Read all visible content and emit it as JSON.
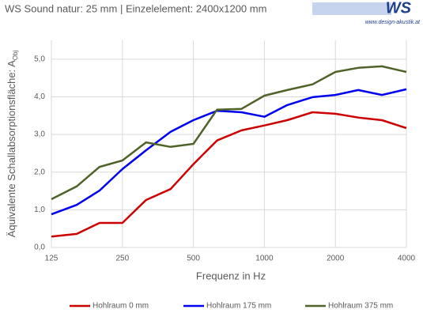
{
  "chart_data": {
    "type": "line",
    "title": "WS Sound natur: 25 mm | Einzelelement: 2400x1200 mm",
    "logo_text": "WS",
    "logo_url": "www.design-akustik.at",
    "x_label": "Frequenz in Hz",
    "y_label": "Äquivalente Schallabsorptionsfläche: A",
    "y_label_subscript": "Obj",
    "x": [
      125,
      160,
      200,
      250,
      315,
      400,
      500,
      630,
      800,
      1000,
      1250,
      1600,
      2000,
      2500,
      3150,
      4000
    ],
    "xscale": "log",
    "xlim": [
      125,
      4000
    ],
    "xticks": [
      125,
      250,
      500,
      1000,
      2000,
      4000
    ],
    "ylim": [
      0,
      5.5
    ],
    "yticks": [
      {
        "value": 0,
        "label": "0,0"
      },
      {
        "value": 1,
        "label": "1,0"
      },
      {
        "value": 2,
        "label": "2,0"
      },
      {
        "value": 3,
        "label": "3,0"
      },
      {
        "value": 4,
        "label": "4,0"
      },
      {
        "value": 5,
        "label": "5,0"
      }
    ],
    "grid": true,
    "legend": "bottom",
    "series": [
      {
        "name": "Hohlraum 0 mm",
        "color": "#cc0000",
        "values": [
          0.29,
          0.36,
          0.65,
          0.65,
          1.26,
          1.55,
          2.21,
          2.84,
          3.11,
          3.24,
          3.38,
          3.59,
          3.55,
          3.45,
          3.38,
          3.17
        ]
      },
      {
        "name": "Hohlraum 175 mm",
        "color": "#0000ee",
        "values": [
          0.88,
          1.13,
          1.51,
          2.08,
          2.58,
          3.07,
          3.38,
          3.63,
          3.59,
          3.47,
          3.78,
          3.99,
          4.05,
          4.18,
          4.05,
          4.2
        ]
      },
      {
        "name": "Hohlraum 375 mm",
        "color": "#4f6228",
        "values": [
          1.28,
          1.62,
          2.14,
          2.31,
          2.79,
          2.67,
          2.75,
          3.66,
          3.68,
          4.03,
          4.18,
          4.33,
          4.66,
          4.77,
          4.81,
          4.66
        ]
      }
    ]
  }
}
